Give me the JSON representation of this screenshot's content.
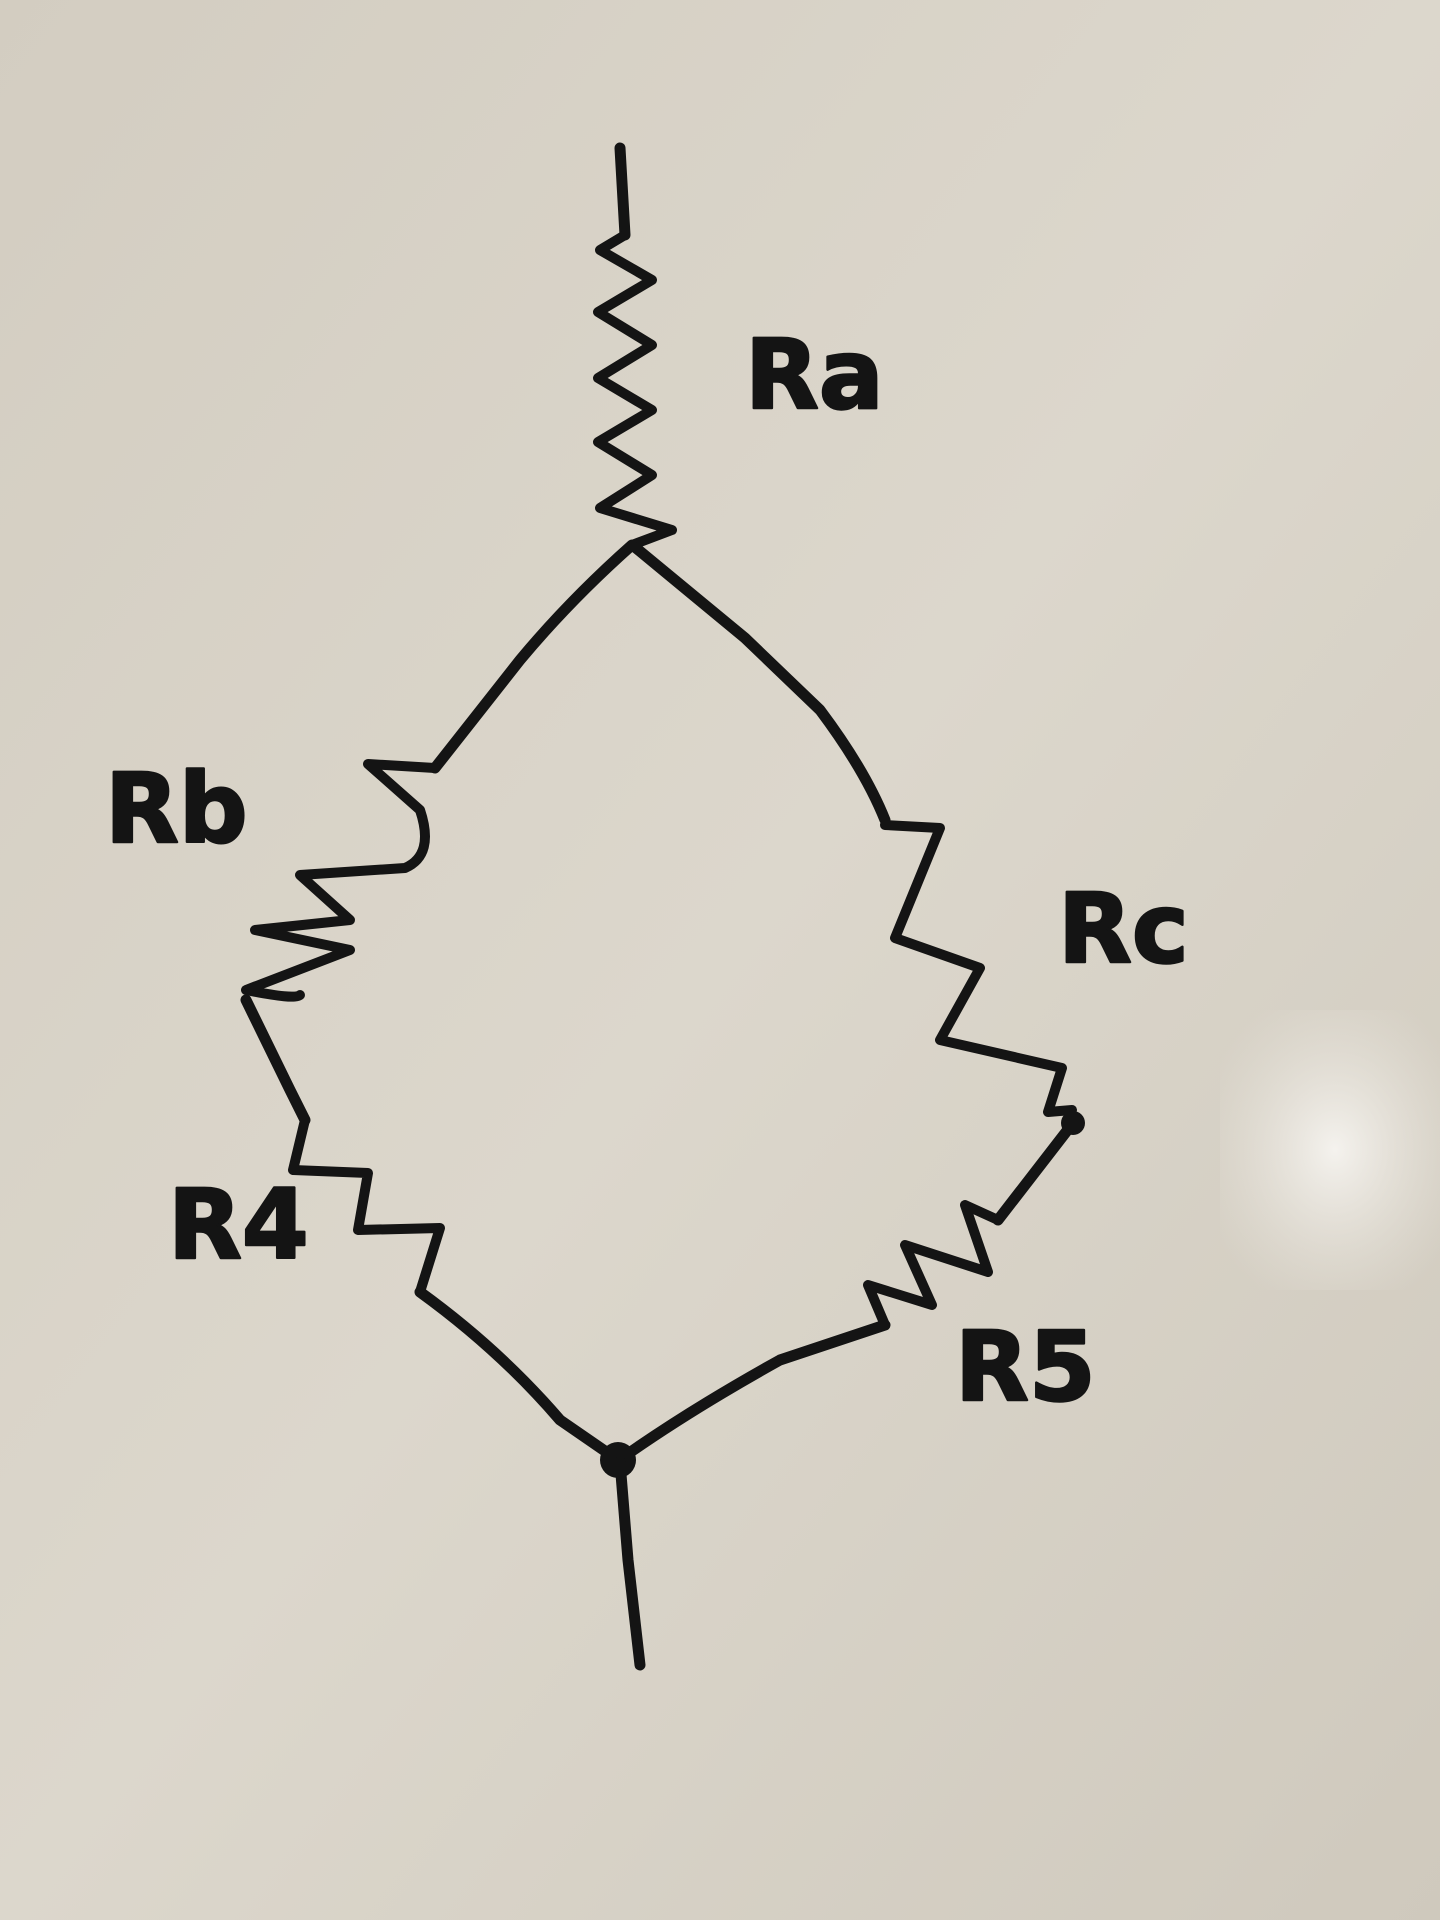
{
  "diagram": {
    "labels": {
      "ra": "Ra",
      "rb": "Rb",
      "rc": "Rc",
      "r4": "R4",
      "r5": "R5"
    },
    "colors": {
      "ink": "#141414",
      "board": "#d6d0c4",
      "glare": "#f4f2ee"
    }
  }
}
